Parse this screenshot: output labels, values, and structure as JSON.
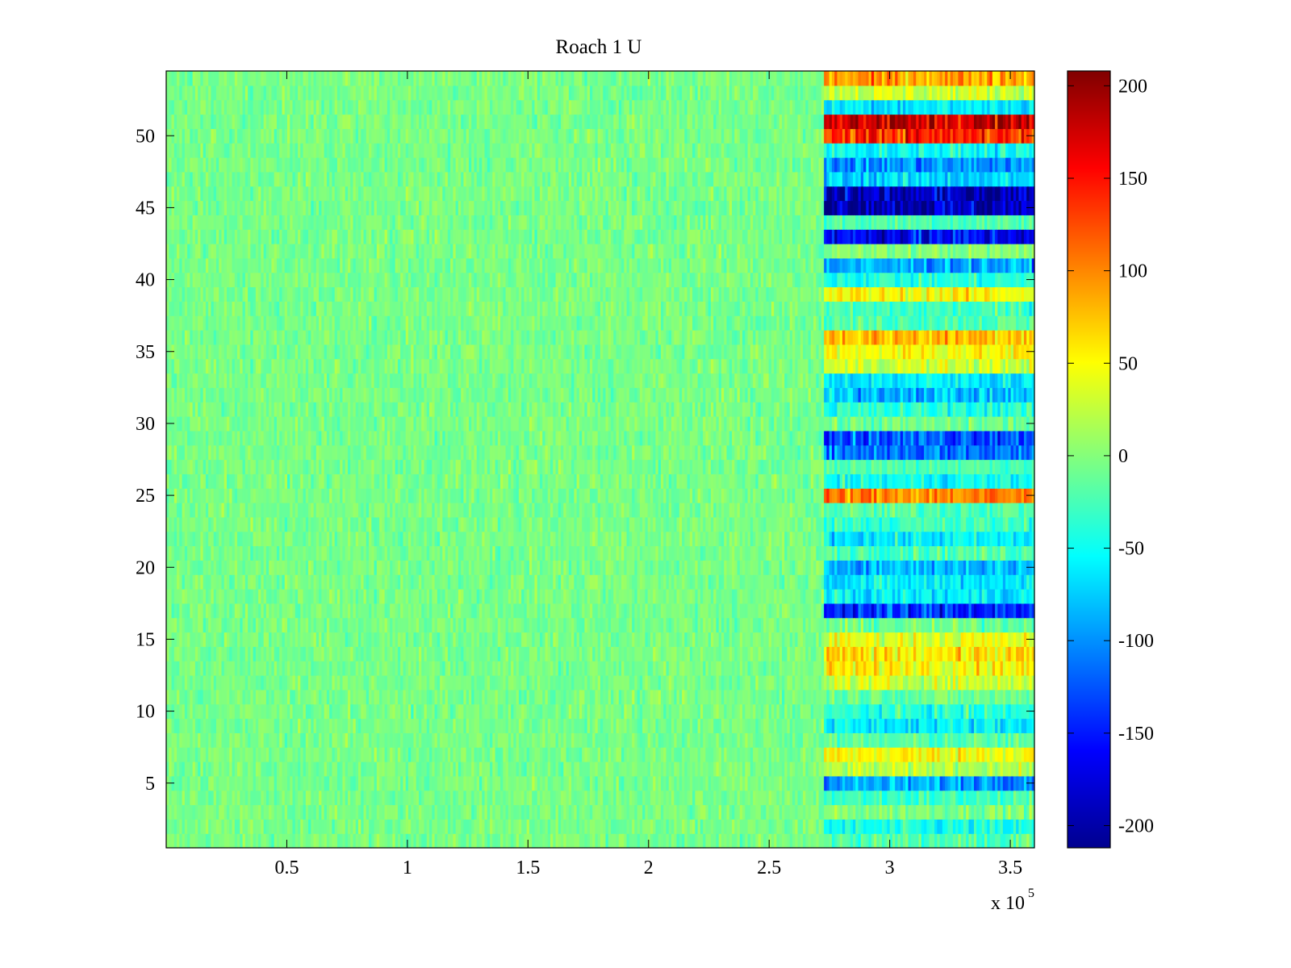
{
  "chart_data": {
    "type": "heatmap",
    "title": "Roach 1 U",
    "colormap": "jet",
    "xlim": [
      0,
      360000
    ],
    "ylim": [
      0.5,
      54.5
    ],
    "clim": [
      -212,
      208
    ],
    "x_multiplier_label": "x 10",
    "x_multiplier_exponent": "5",
    "x_ticks": [
      {
        "value": 50000,
        "label": "0.5"
      },
      {
        "value": 100000,
        "label": "1"
      },
      {
        "value": 150000,
        "label": "1.5"
      },
      {
        "value": 200000,
        "label": "2"
      },
      {
        "value": 250000,
        "label": "2.5"
      },
      {
        "value": 300000,
        "label": "3"
      },
      {
        "value": 350000,
        "label": "3.5"
      }
    ],
    "y_ticks": [
      {
        "value": 5,
        "label": "5"
      },
      {
        "value": 10,
        "label": "10"
      },
      {
        "value": 15,
        "label": "15"
      },
      {
        "value": 20,
        "label": "20"
      },
      {
        "value": 25,
        "label": "25"
      },
      {
        "value": 30,
        "label": "30"
      },
      {
        "value": 35,
        "label": "35"
      },
      {
        "value": 40,
        "label": "40"
      },
      {
        "value": 45,
        "label": "45"
      },
      {
        "value": 50,
        "label": "50"
      }
    ],
    "colorbar_ticks": [
      {
        "value": 200,
        "label": "200"
      },
      {
        "value": 150,
        "label": "150"
      },
      {
        "value": 100,
        "label": "100"
      },
      {
        "value": 50,
        "label": "50"
      },
      {
        "value": 0,
        "label": "0"
      },
      {
        "value": -50,
        "label": "-50"
      },
      {
        "value": -100,
        "label": "-100"
      },
      {
        "value": -150,
        "label": "-150"
      },
      {
        "value": -200,
        "label": "-200"
      }
    ],
    "rows": 54,
    "baseline_mean_early": -5,
    "transition_x": 273000,
    "late_row_means": [
      {
        "row": 1,
        "value": -20
      },
      {
        "row": 2,
        "value": -50
      },
      {
        "row": 3,
        "value": 0
      },
      {
        "row": 4,
        "value": -30
      },
      {
        "row": 5,
        "value": -90
      },
      {
        "row": 6,
        "value": 20
      },
      {
        "row": 7,
        "value": 50
      },
      {
        "row": 8,
        "value": -20
      },
      {
        "row": 9,
        "value": -60
      },
      {
        "row": 10,
        "value": -40
      },
      {
        "row": 11,
        "value": -10
      },
      {
        "row": 12,
        "value": 30
      },
      {
        "row": 13,
        "value": 55
      },
      {
        "row": 14,
        "value": 60
      },
      {
        "row": 15,
        "value": 40
      },
      {
        "row": 16,
        "value": -10
      },
      {
        "row": 17,
        "value": -140
      },
      {
        "row": 18,
        "value": -60
      },
      {
        "row": 19,
        "value": -60
      },
      {
        "row": 20,
        "value": -80
      },
      {
        "row": 21,
        "value": -20
      },
      {
        "row": 22,
        "value": -60
      },
      {
        "row": 23,
        "value": -30
      },
      {
        "row": 24,
        "value": -20
      },
      {
        "row": 25,
        "value": 100
      },
      {
        "row": 26,
        "value": -50
      },
      {
        "row": 27,
        "value": -20
      },
      {
        "row": 28,
        "value": -110
      },
      {
        "row": 29,
        "value": -120
      },
      {
        "row": 30,
        "value": -10
      },
      {
        "row": 31,
        "value": -40
      },
      {
        "row": 32,
        "value": -80
      },
      {
        "row": 33,
        "value": -60
      },
      {
        "row": 34,
        "value": 30
      },
      {
        "row": 35,
        "value": 50
      },
      {
        "row": 36,
        "value": 80
      },
      {
        "row": 37,
        "value": -20
      },
      {
        "row": 38,
        "value": -30
      },
      {
        "row": 39,
        "value": 50
      },
      {
        "row": 40,
        "value": -40
      },
      {
        "row": 41,
        "value": -90
      },
      {
        "row": 42,
        "value": 0
      },
      {
        "row": 43,
        "value": -160
      },
      {
        "row": 44,
        "value": -20
      },
      {
        "row": 45,
        "value": -185
      },
      {
        "row": 46,
        "value": -190
      },
      {
        "row": 47,
        "value": -70
      },
      {
        "row": 48,
        "value": -100
      },
      {
        "row": 49,
        "value": -50
      },
      {
        "row": 50,
        "value": 140
      },
      {
        "row": 51,
        "value": 175
      },
      {
        "row": 52,
        "value": -60
      },
      {
        "row": 53,
        "value": 30
      },
      {
        "row": 54,
        "value": 90
      }
    ]
  }
}
